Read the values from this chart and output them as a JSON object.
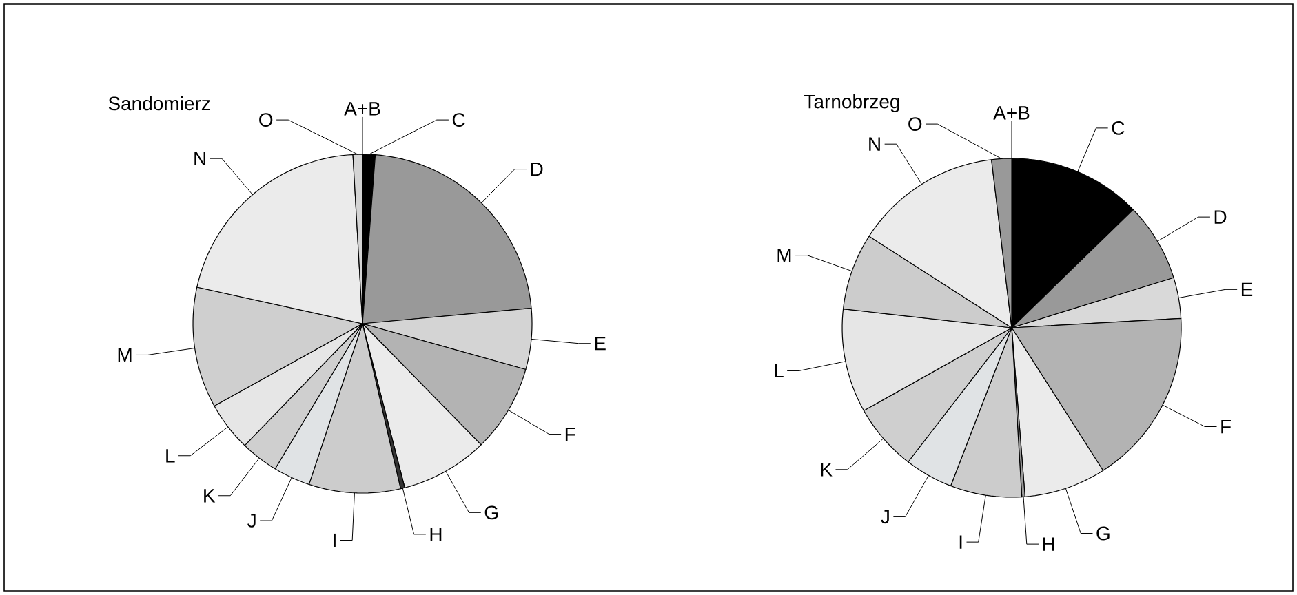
{
  "chart_data": [
    {
      "type": "pie",
      "title": "Sandomierz",
      "categories": [
        "A+B",
        "C",
        "D",
        "E",
        "F",
        "G",
        "H",
        "I",
        "J",
        "K",
        "L",
        "M",
        "N",
        "O"
      ],
      "values": [
        null,
        1.2,
        22.3,
        5.8,
        8.3,
        8.3,
        0.4,
        8.7,
        3.5,
        3.6,
        4.7,
        11.5,
        20.6,
        0.9
      ],
      "colors": [
        "#ffffff",
        "#000000",
        "#999999",
        "#d4d4d4",
        "#b3b3b3",
        "#ebebeb",
        "#333333",
        "#cccccc",
        "#e0e3e5",
        "#cfcfcf",
        "#e6e6e6",
        "#cfcfcf",
        "#ebebeb",
        "#d4d4d4"
      ]
    },
    {
      "type": "pie",
      "title": "Tarnobrzeg",
      "categories": [
        "A+B",
        "C",
        "D",
        "E",
        "F",
        "G",
        "H",
        "I",
        "J",
        "K",
        "L",
        "M",
        "N",
        "O"
      ],
      "values": [
        null,
        12.7,
        7.5,
        3.9,
        16.8,
        7.8,
        0.3,
        6.8,
        4.6,
        6.4,
        9.9,
        7.3,
        14.0,
        1.9
      ],
      "colors": [
        "#ffffff",
        "#000000",
        "#999999",
        "#d9d9d9",
        "#b3b3b3",
        "#ebebeb",
        "#999999",
        "#cccccc",
        "#e0e3e5",
        "#cfcfcf",
        "#e6e6e6",
        "#cccccc",
        "#ebebeb",
        "#999999"
      ]
    }
  ]
}
